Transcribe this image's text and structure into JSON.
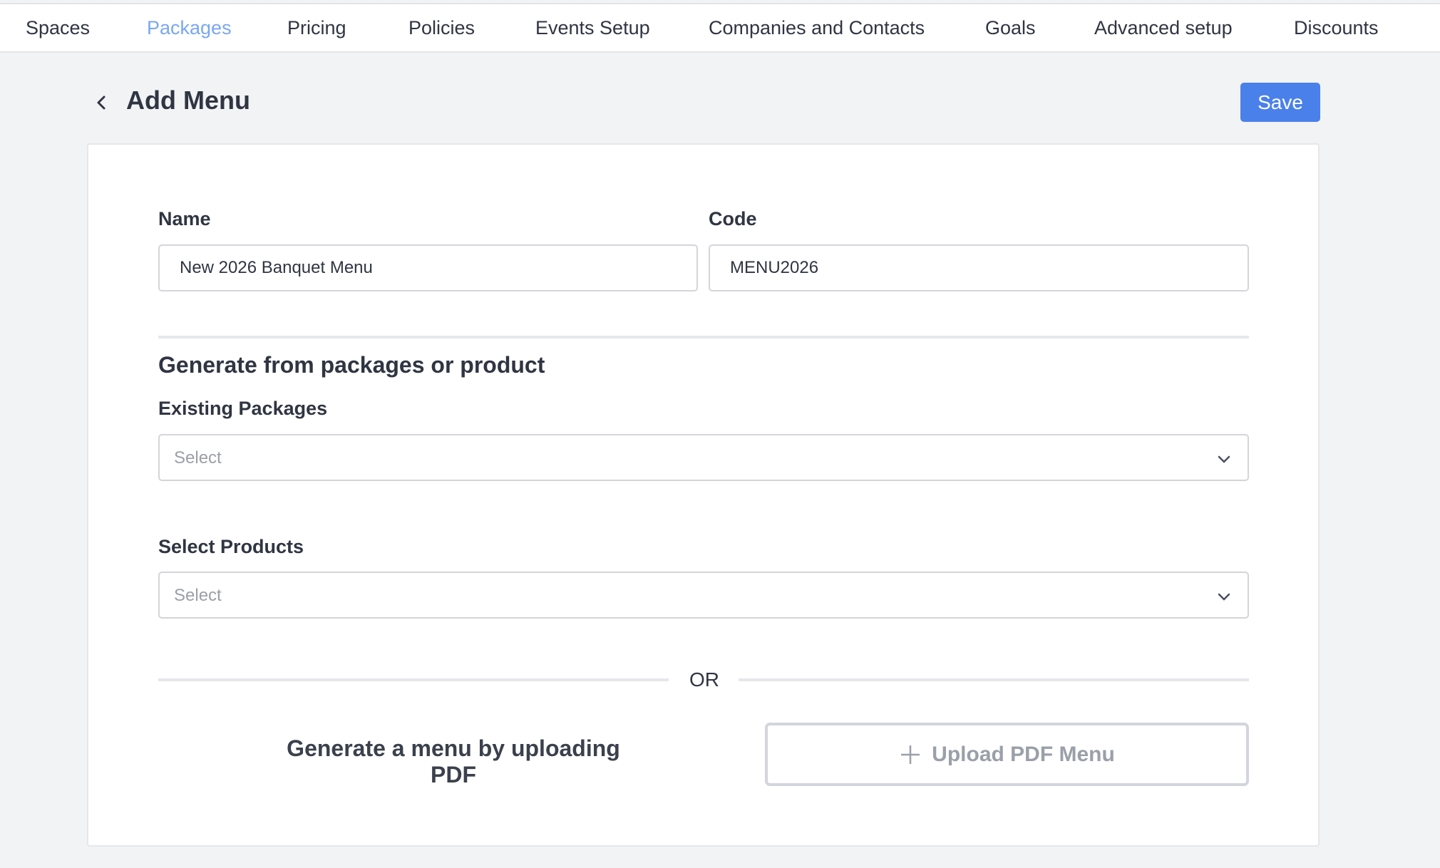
{
  "nav": {
    "items": [
      "Spaces",
      "Packages",
      "Pricing",
      "Policies",
      "Events Setup",
      "Companies and Contacts",
      "Goals",
      "Advanced setup",
      "Discounts"
    ],
    "active": "Packages"
  },
  "header": {
    "title": "Add Menu",
    "save_label": "Save"
  },
  "form": {
    "name_label": "Name",
    "name_value": "New 2026 Banquet Menu",
    "code_label": "Code",
    "code_value": "MENU2026",
    "section_title": "Generate from packages or product",
    "packages_label": "Existing Packages",
    "packages_placeholder": "Select",
    "products_label": "Select Products",
    "products_placeholder": "Select",
    "or_text": "OR",
    "pdf_text": "Generate a menu by uploading PDF",
    "upload_label": "Upload PDF Menu"
  },
  "colors": {
    "accent": "#4a80ea",
    "active_tab": "#7aa7f2",
    "background": "#f2f3f5"
  }
}
